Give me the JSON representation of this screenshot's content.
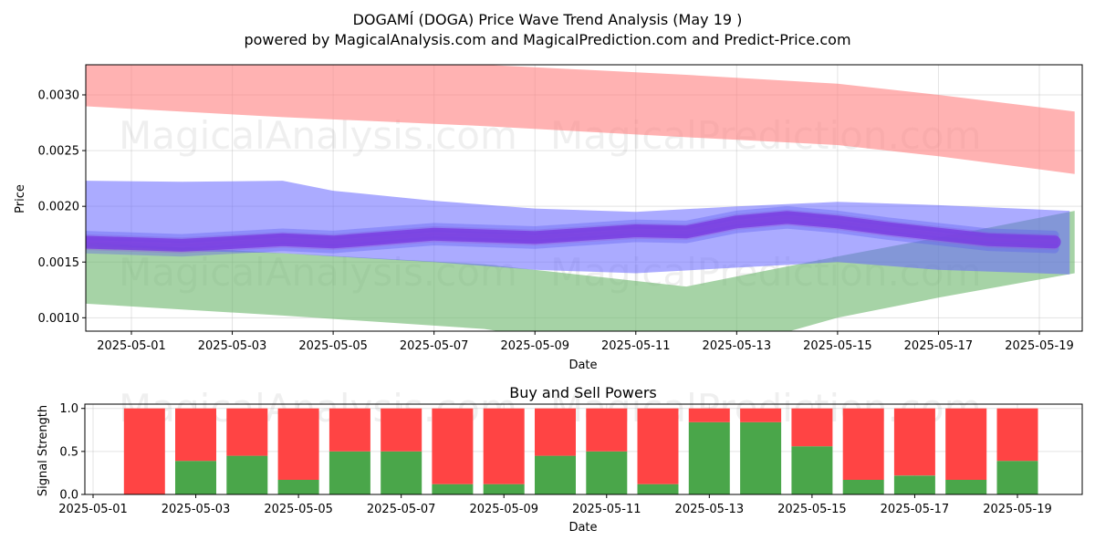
{
  "header": {
    "title": "DOGAMÍ (DOGA) Price Wave Trend Analysis (May 19 )",
    "subtitle": "powered by MagicalAnalysis.com and MagicalPrediction.com and Predict-Price.com"
  },
  "watermarks": [
    "MagicalAnalysis.com",
    "MagicalPrediction.com"
  ],
  "colors": {
    "upper_band": "#ff7f7f",
    "lower_band": "#6ab56a",
    "wave_band": "#6666ff",
    "wave_line": "#7a3ee0",
    "buy": "#4aa64a",
    "sell": "#ff4444"
  },
  "chart_data": [
    {
      "type": "area",
      "title": "",
      "xlabel": "Date",
      "ylabel": "Price",
      "xlim": [
        "2025-04-30",
        "2025-05-20"
      ],
      "ylim": [
        0.00088,
        0.00327
      ],
      "yticks": [
        "0.0010",
        "0.0015",
        "0.0020",
        "0.0025",
        "0.0030"
      ],
      "yticks_values": [
        0.001,
        0.0015,
        0.002,
        0.0025,
        0.003
      ],
      "xticks": [
        "2025-05-01",
        "2025-05-03",
        "2025-05-05",
        "2025-05-07",
        "2025-05-09",
        "2025-05-11",
        "2025-05-13",
        "2025-05-15",
        "2025-05-17",
        "2025-05-19"
      ],
      "grid": true,
      "series": [
        {
          "kind": "band",
          "color": "#ff7f7f",
          "x": [
            "2025-04-30",
            "2025-05-04",
            "2025-05-08",
            "2025-05-12",
            "2025-05-15",
            "2025-05-17",
            "2025-05-19.7"
          ],
          "upper": [
            0.00335,
            0.0034,
            0.00327,
            0.00318,
            0.0031,
            0.003,
            0.00285
          ],
          "lower": [
            0.0029,
            0.0028,
            0.00272,
            0.00262,
            0.00255,
            0.00245,
            0.00229
          ]
        },
        {
          "kind": "band",
          "color": "#6ab56a",
          "x": [
            "2025-04-30",
            "2025-05-04",
            "2025-05-08",
            "2025-05-12",
            "2025-05-15",
            "2025-05-17",
            "2025-05-19.7"
          ],
          "upper": [
            0.00168,
            0.00158,
            0.00148,
            0.00128,
            0.00155,
            0.00172,
            0.00196
          ],
          "lower": [
            0.00113,
            0.00102,
            0.0009,
            0.00062,
            0.001,
            0.00118,
            0.0014
          ]
        },
        {
          "kind": "band",
          "color": "#6666ff",
          "x": [
            "2025-04-30",
            "2025-05-02",
            "2025-05-04",
            "2025-05-05",
            "2025-05-07",
            "2025-05-09",
            "2025-05-11",
            "2025-05-13",
            "2025-05-15",
            "2025-05-17",
            "2025-05-19.6"
          ],
          "upper": [
            0.00223,
            0.00222,
            0.00223,
            0.00214,
            0.00205,
            0.00198,
            0.00195,
            0.002,
            0.00204,
            0.00201,
            0.00196
          ],
          "lower": [
            0.00167,
            0.0016,
            0.00158,
            0.00155,
            0.0015,
            0.00143,
            0.0014,
            0.00145,
            0.0015,
            0.00143,
            0.00139
          ]
        },
        {
          "kind": "wave",
          "color": "#7a3ee0",
          "x": [
            "2025-04-30",
            "2025-05-02",
            "2025-05-04",
            "2025-05-05",
            "2025-05-07",
            "2025-05-09",
            "2025-05-11",
            "2025-05-12",
            "2025-05-13",
            "2025-05-14",
            "2025-05-15",
            "2025-05-16",
            "2025-05-18",
            "2025-05-19.3"
          ],
          "values": [
            0.00168,
            0.00165,
            0.0017,
            0.00168,
            0.00175,
            0.00172,
            0.00178,
            0.00177,
            0.00186,
            0.0019,
            0.00186,
            0.0018,
            0.0017,
            0.00168
          ]
        }
      ]
    },
    {
      "type": "bar",
      "title": "Buy and Sell Powers",
      "xlabel": "Date",
      "ylabel": "Signal Strength",
      "ylim": [
        0,
        1.05
      ],
      "yticks": [
        "0.0",
        "0.5",
        "1.0"
      ],
      "yticks_values": [
        0.0,
        0.5,
        1.0
      ],
      "xticks": [
        "2025-05-01",
        "2025-05-03",
        "2025-05-05",
        "2025-05-07",
        "2025-05-09",
        "2025-05-11",
        "2025-05-13",
        "2025-05-15",
        "2025-05-17",
        "2025-05-19"
      ],
      "categories": [
        "2025-05-02",
        "2025-05-03",
        "2025-05-04",
        "2025-05-05",
        "2025-05-06",
        "2025-05-07",
        "2025-05-08",
        "2025-05-09",
        "2025-05-10",
        "2025-05-11",
        "2025-05-12",
        "2025-05-13",
        "2025-05-14",
        "2025-05-15",
        "2025-05-16",
        "2025-05-17",
        "2025-05-18",
        "2025-05-19"
      ],
      "series": [
        {
          "color": "#4aa64a",
          "values": [
            0.0,
            0.39,
            0.45,
            0.17,
            0.5,
            0.5,
            0.12,
            0.12,
            0.45,
            0.5,
            0.12,
            0.84,
            0.84,
            0.56,
            0.17,
            0.22,
            0.17,
            0.39
          ]
        },
        {
          "color": "#ff4444",
          "values": [
            1.0,
            0.61,
            0.55,
            0.83,
            0.5,
            0.5,
            0.88,
            0.88,
            0.55,
            0.5,
            0.88,
            0.16,
            0.16,
            0.44,
            0.83,
            0.78,
            0.83,
            0.61
          ]
        }
      ]
    }
  ]
}
